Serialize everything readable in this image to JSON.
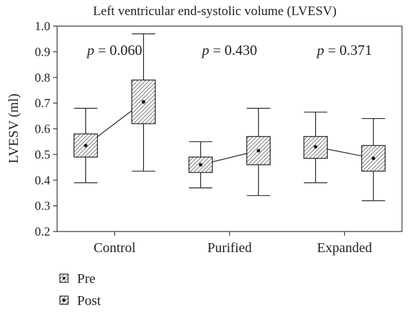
{
  "chart_data": {
    "type": "box",
    "title": "Left ventricular end-systolic volume (LVESV)",
    "ylabel": "LVESV (ml)",
    "xlabel": "",
    "ylim": [
      0.2,
      1.0
    ],
    "yticks": [
      "0.2",
      "0.3",
      "0.4",
      "0.5",
      "0.6",
      "0.7",
      "0.8",
      "0.9",
      "1.0"
    ],
    "categories": [
      "Control",
      "Purified",
      "Expanded"
    ],
    "annotations": [
      {
        "category": "Control",
        "prefix": "p",
        "text": " = 0.060"
      },
      {
        "category": "Purified",
        "prefix": "p",
        "text": " = 0.430"
      },
      {
        "category": "Expanded",
        "prefix": "p",
        "text": " = 0.371"
      }
    ],
    "series": [
      {
        "name": "Pre",
        "boxes": [
          {
            "category": "Control",
            "min": 0.39,
            "q1": 0.49,
            "median": 0.535,
            "q3": 0.58,
            "max": 0.68
          },
          {
            "category": "Purified",
            "min": 0.37,
            "q1": 0.43,
            "median": 0.46,
            "q3": 0.49,
            "max": 0.55
          },
          {
            "category": "Expanded",
            "min": 0.39,
            "q1": 0.485,
            "median": 0.53,
            "q3": 0.57,
            "max": 0.665
          }
        ]
      },
      {
        "name": "Post",
        "boxes": [
          {
            "category": "Control",
            "min": 0.435,
            "q1": 0.62,
            "median": 0.705,
            "q3": 0.79,
            "max": 0.97
          },
          {
            "category": "Purified",
            "min": 0.34,
            "q1": 0.46,
            "median": 0.515,
            "q3": 0.57,
            "max": 0.68
          },
          {
            "category": "Expanded",
            "min": 0.32,
            "q1": 0.435,
            "median": 0.485,
            "q3": 0.535,
            "max": 0.64
          }
        ]
      }
    ],
    "legend_position": "bottom-left",
    "grid": false
  }
}
